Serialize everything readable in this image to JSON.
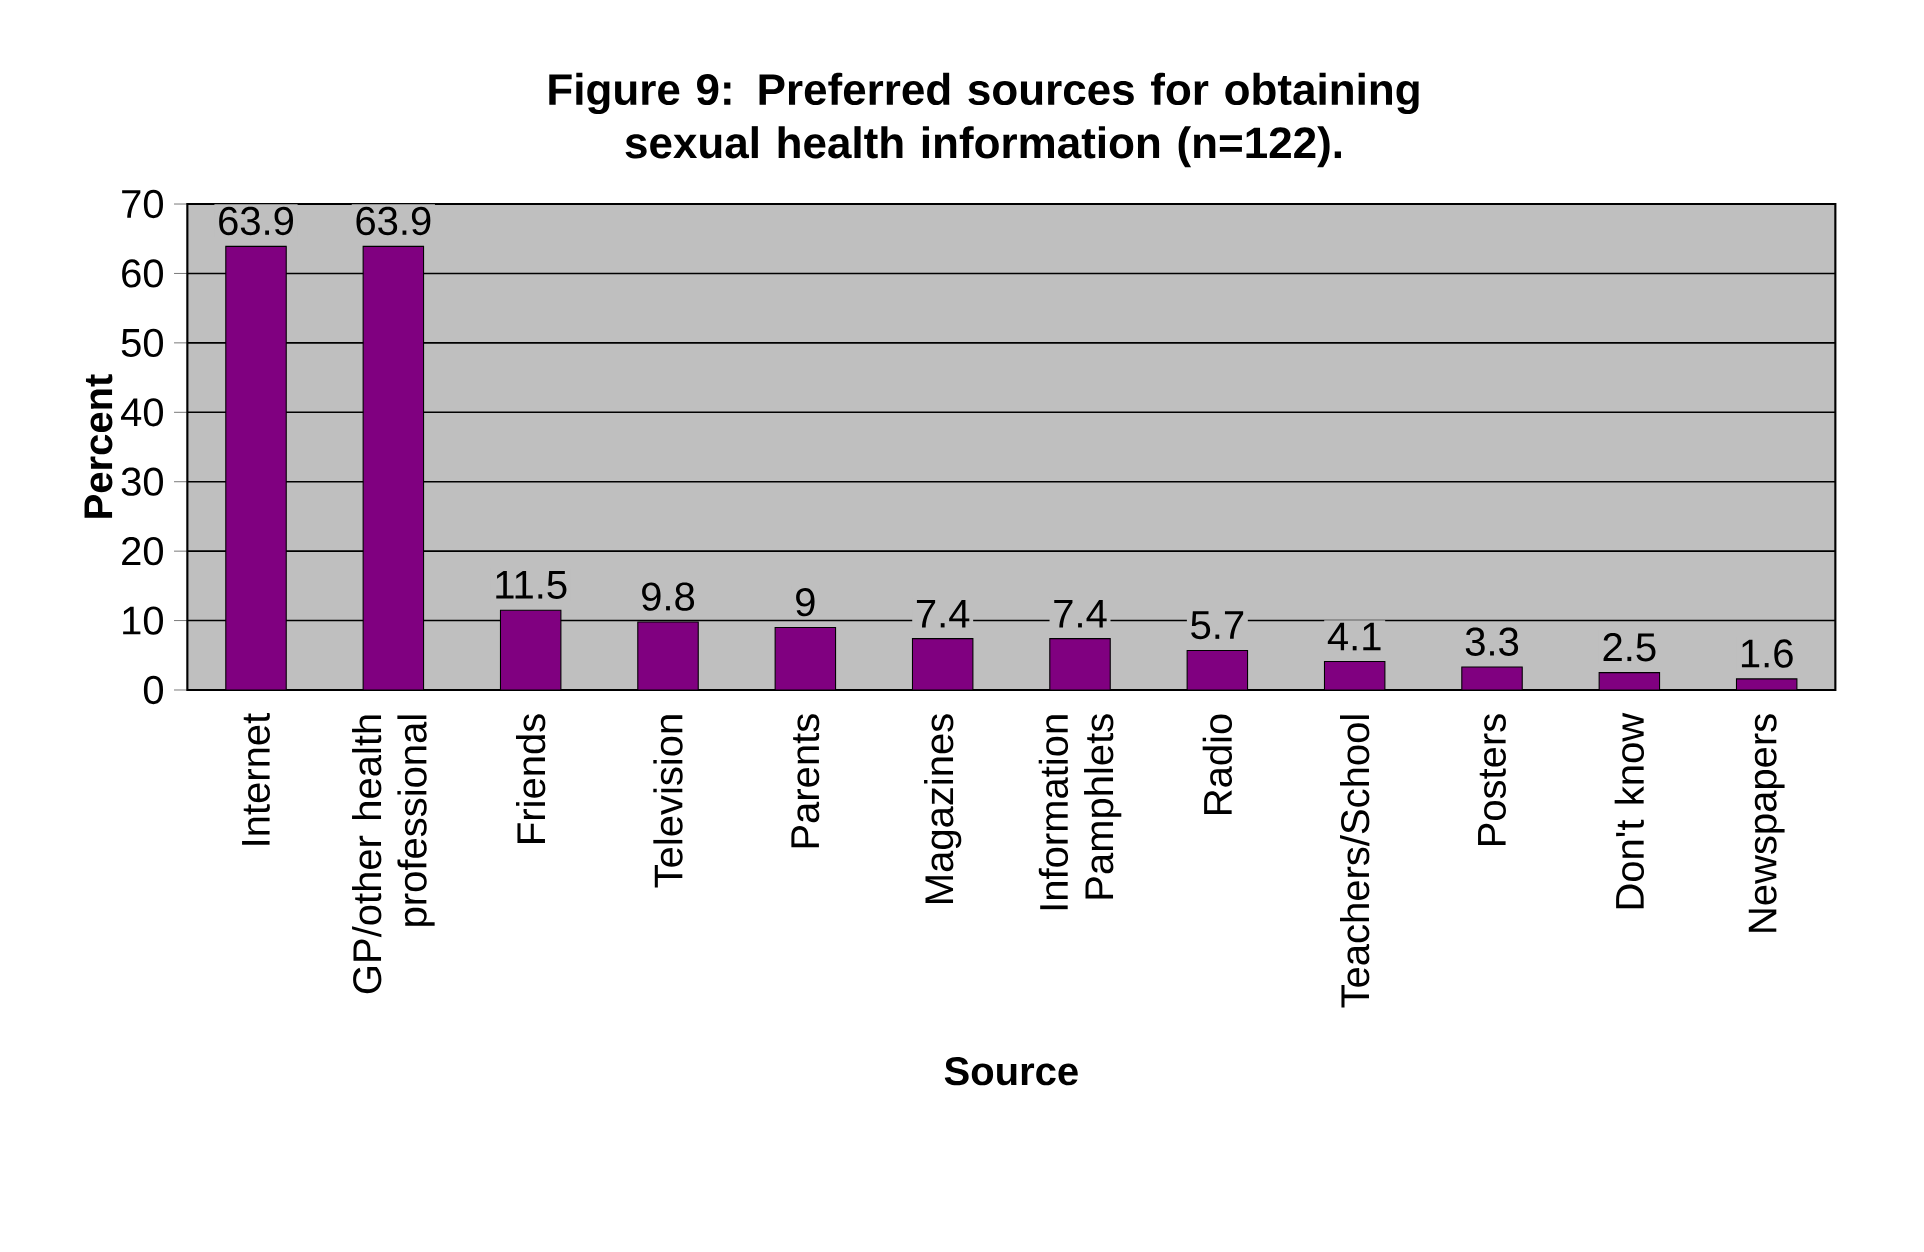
{
  "chart_data": {
    "type": "bar",
    "title": "Figure 9: Preferred sources for obtaining sexual health information (n=122).",
    "xlabel": "Source",
    "ylabel": "Percent",
    "categories": [
      "Internet",
      "GP/other health professional",
      "Friends",
      "Television",
      "Parents",
      "Magazines",
      "Information Pamphlets",
      "Radio",
      "Teachers/School",
      "Posters",
      "Don't know",
      "Newspapers"
    ],
    "values": [
      63.9,
      63.9,
      11.5,
      9.8,
      9,
      7.4,
      7.4,
      5.7,
      4.1,
      3.3,
      2.5,
      1.6
    ],
    "color": "#800080",
    "ylim": [
      0,
      70
    ],
    "yticks": [
      0,
      10,
      20,
      30,
      40,
      50,
      60,
      70
    ],
    "grid": "y",
    "data_labels": true
  }
}
